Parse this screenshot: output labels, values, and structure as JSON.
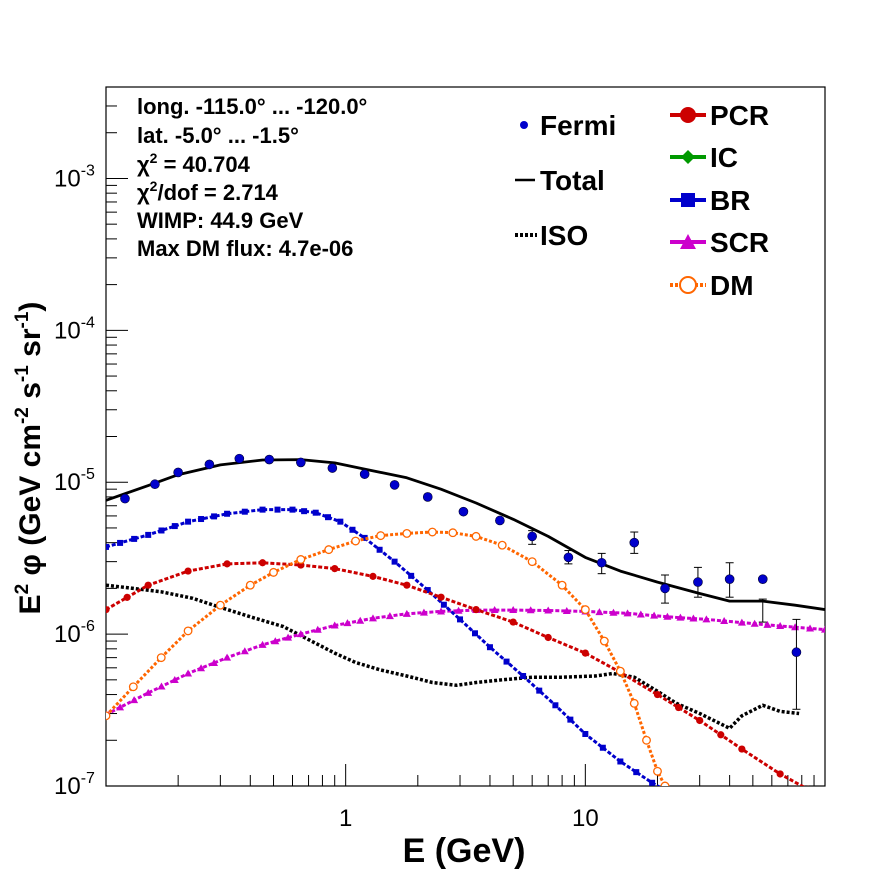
{
  "chart_data": {
    "type": "line",
    "x_scale": "log",
    "y_scale": "log",
    "xlim": [
      0.1,
      100
    ],
    "ylim": [
      1e-07,
      0.004
    ],
    "xlabel": "E (GeV)",
    "ylabel": "E² φ (GeV cm⁻² s⁻¹ sr⁻¹)",
    "ylabel_parts": {
      "a": "E",
      "b": "2",
      "c": " φ (GeV cm",
      "d": "-2",
      "e": " s",
      "f": "-1",
      "g": " sr",
      "h": "-1",
      "i": ")"
    },
    "x_tick_labels": [
      {
        "v": 1,
        "t": "1"
      },
      {
        "v": 10,
        "t": "10"
      }
    ],
    "y_tick_labels": [
      {
        "v": 1e-07,
        "base": "10",
        "exp": "-7"
      },
      {
        "v": 1e-06,
        "base": "10",
        "exp": "-6"
      },
      {
        "v": 1e-05,
        "base": "10",
        "exp": "-5"
      },
      {
        "v": 0.0001,
        "base": "10",
        "exp": "-4"
      },
      {
        "v": 0.001,
        "base": "10",
        "exp": "-3"
      }
    ],
    "info_text": {
      "longitude": "long. -115.0° ... -120.0°",
      "latitude": "lat. -5.0° ... -1.5°",
      "chi2_symbol": "χ",
      "chi2_exp": "2",
      "chi2_value": " = 40.704",
      "chi2dof_symbol": "χ",
      "chi2dof_exp": "2",
      "chi2dof_value": "/dof = 2.714",
      "wimp": "WIMP: 44.9 GeV",
      "max_dm_flux": "Max DM flux: 4.7e-06"
    },
    "legend": [
      {
        "key": "fermi",
        "label": "Fermi",
        "color": "#0000cc"
      },
      {
        "key": "total",
        "label": "Total",
        "color": "#000000"
      },
      {
        "key": "iso",
        "label": "ISO",
        "color": "#000000"
      },
      {
        "key": "pcr",
        "label": "PCR",
        "color": "#cc0000"
      },
      {
        "key": "ic",
        "label": "IC",
        "color": "#009900"
      },
      {
        "key": "br",
        "label": "BR",
        "color": "#0000cc"
      },
      {
        "key": "scr",
        "label": "SCR",
        "color": "#cc00cc"
      },
      {
        "key": "dm",
        "label": "DM",
        "color": "#ff6600"
      }
    ],
    "fermi": {
      "x": [
        0.12,
        0.16,
        0.2,
        0.27,
        0.36,
        0.48,
        0.65,
        0.88,
        1.2,
        1.6,
        2.2,
        3.1,
        4.4,
        6.0,
        8.5,
        11.7,
        16.0,
        21.5,
        29.5,
        40.0,
        55.0,
        76.0
      ],
      "y": [
        7.8e-06,
        9.7e-06,
        1.16e-05,
        1.31e-05,
        1.43e-05,
        1.41e-05,
        1.35e-05,
        1.24e-05,
        1.13e-05,
        9.6e-06,
        8e-06,
        6.4e-06,
        5.6e-06,
        4.4e-06,
        3.2e-06,
        2.95e-06,
        4e-06,
        2e-06,
        2.2e-06,
        2.3e-06,
        2.3e-06,
        7.6e-07
      ],
      "err_lo": [
        0,
        0,
        0,
        0,
        0,
        0,
        0,
        0,
        0,
        0,
        0,
        0,
        0,
        3.9e-06,
        2.9e-06,
        2.5e-06,
        3.4e-06,
        1.6e-06,
        1.75e-06,
        1.75e-06,
        1.7e-06,
        3.2e-07
      ],
      "err_hi": [
        0,
        0,
        0,
        0,
        0,
        0,
        0,
        0,
        0,
        0,
        0,
        0,
        0,
        4.8e-06,
        3.55e-06,
        3.4e-06,
        4.7e-06,
        2.45e-06,
        2.75e-06,
        2.95e-06,
        1.2e-06,
        1.25e-06
      ]
    },
    "total": {
      "x": [
        0.1,
        0.15,
        0.2,
        0.3,
        0.45,
        0.65,
        0.9,
        1.2,
        1.8,
        2.5,
        3.5,
        5,
        7,
        10,
        14,
        20,
        30,
        40,
        55,
        75,
        100
      ],
      "y": [
        7.6e-06,
        9.5e-06,
        1.12e-05,
        1.3e-05,
        1.4e-05,
        1.41e-05,
        1.34e-05,
        1.22e-05,
        1.07e-05,
        9e-06,
        7.3e-06,
        5.7e-06,
        4.4e-06,
        3.2e-06,
        2.6e-06,
        2.2e-06,
        1.85e-06,
        1.65e-06,
        1.65e-06,
        1.55e-06,
        1.45e-06
      ]
    },
    "iso": {
      "x": [
        0.1,
        0.13,
        0.17,
        0.23,
        0.3,
        0.4,
        0.55,
        0.7,
        0.9,
        1.1,
        1.4,
        1.8,
        2.3,
        2.9,
        3.5,
        4.5,
        6,
        8,
        11,
        13,
        16,
        20,
        24,
        30,
        40,
        45,
        55,
        65,
        78
      ],
      "y": [
        2.1e-06,
        2e-06,
        1.9e-06,
        1.72e-06,
        1.5e-06,
        1.3e-06,
        1.12e-06,
        9.2e-07,
        7.5e-07,
        6.5e-07,
        5.8e-07,
        5.3e-07,
        4.8e-07,
        4.6e-07,
        4.8e-07,
        5e-07,
        5.2e-07,
        5.2e-07,
        5.3e-07,
        5.5e-07,
        5.2e-07,
        4.2e-07,
        3.5e-07,
        3e-07,
        2.4e-07,
        2.9e-07,
        3.4e-07,
        3.1e-07,
        3e-07
      ]
    },
    "pcr": {
      "x": [
        0.1,
        0.15,
        0.22,
        0.32,
        0.45,
        0.65,
        0.9,
        1.3,
        1.8,
        2.5,
        3.5,
        5,
        7,
        10,
        14,
        20,
        30,
        45,
        65,
        85
      ],
      "y": [
        1.45e-06,
        2.1e-06,
        2.6e-06,
        2.9e-06,
        2.95e-06,
        2.85e-06,
        2.7e-06,
        2.4e-06,
        2.1e-06,
        1.75e-06,
        1.45e-06,
        1.2e-06,
        9.5e-07,
        7.5e-07,
        5.6e-07,
        4e-07,
        2.7e-07,
        1.75e-07,
        1.2e-07,
        9.5e-08
      ]
    },
    "br": {
      "x": [
        0.1,
        0.15,
        0.22,
        0.32,
        0.45,
        0.6,
        0.75,
        0.95,
        1.2,
        1.6,
        2.2,
        3,
        4,
        5.5,
        7.5,
        10,
        14,
        19,
        24
      ],
      "y": [
        3.75e-06,
        4.5e-06,
        5.5e-06,
        6.2e-06,
        6.6e-06,
        6.6e-06,
        6.3e-06,
        5.5e-06,
        4.3e-06,
        3e-06,
        1.95e-06,
        1.25e-06,
        8.2e-07,
        5.3e-07,
        3.4e-07,
        2.2e-07,
        1.45e-07,
        1.05e-07,
        8.5e-08
      ]
    },
    "scr": {
      "x": [
        0.1,
        0.15,
        0.22,
        0.32,
        0.45,
        0.65,
        0.9,
        1.3,
        1.8,
        2.5,
        3.5,
        5,
        7,
        10,
        15,
        22,
        32,
        45,
        65,
        100
      ],
      "y": [
        2.95e-07,
        4.1e-07,
        5.5e-07,
        7e-07,
        8.5e-07,
        1e-06,
        1.14e-06,
        1.27e-06,
        1.36e-06,
        1.41e-06,
        1.44e-06,
        1.44e-06,
        1.43e-06,
        1.41e-06,
        1.37e-06,
        1.3e-06,
        1.25e-06,
        1.19e-06,
        1.13e-06,
        1.07e-06
      ]
    },
    "dm": {
      "x": [
        0.1,
        0.13,
        0.17,
        0.22,
        0.3,
        0.4,
        0.5,
        0.65,
        0.85,
        1.1,
        1.4,
        1.8,
        2.3,
        2.8,
        3.5,
        4.5,
        6,
        8,
        10,
        12,
        14,
        16,
        18,
        20,
        21.5
      ],
      "y": [
        2.9e-07,
        4.5e-07,
        7e-07,
        1.05e-06,
        1.55e-06,
        2.1e-06,
        2.55e-06,
        3.1e-06,
        3.6e-06,
        4.1e-06,
        4.45e-06,
        4.6e-06,
        4.7e-06,
        4.65e-06,
        4.4e-06,
        3.85e-06,
        3e-06,
        2.1e-06,
        1.45e-06,
        9e-07,
        5.7e-07,
        3.5e-07,
        2e-07,
        1.25e-07,
        1e-07
      ]
    }
  }
}
